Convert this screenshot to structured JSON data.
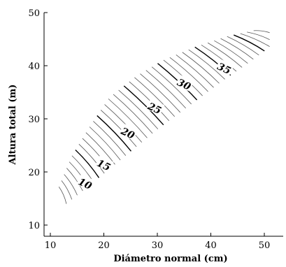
{
  "chart_data": {
    "type": "line",
    "title": "",
    "xlabel": "Diámetro normal (cm)",
    "ylabel": "Altura total (m)",
    "xlim": [
      10,
      53
    ],
    "ylim": [
      10,
      50
    ],
    "xticks": [
      "10",
      "20",
      "30",
      "40",
      "50"
    ],
    "yticks": [
      "10",
      "20",
      "30",
      "40",
      "50"
    ],
    "grid": false,
    "contour_lines_count": 40,
    "labeled_contours": [
      {
        "label": "10",
        "x": 16.5,
        "y": 17.8
      },
      {
        "label": "15",
        "x": 20.0,
        "y": 21.3
      },
      {
        "label": "20",
        "x": 24.5,
        "y": 27.3
      },
      {
        "label": "25",
        "x": 29.5,
        "y": 32.0
      },
      {
        "label": "30",
        "x": 35.0,
        "y": 36.5
      },
      {
        "label": "35",
        "x": 42.5,
        "y": 39.5
      }
    ],
    "region": {
      "left_boundary": [
        {
          "x": 11.6,
          "y": 17.2
        },
        {
          "x": 14.0,
          "y": 23.0
        },
        {
          "x": 17.0,
          "y": 28.0
        },
        {
          "x": 21.0,
          "y": 34.0
        },
        {
          "x": 26.0,
          "y": 38.0
        },
        {
          "x": 31.0,
          "y": 41.0
        },
        {
          "x": 37.0,
          "y": 43.5
        },
        {
          "x": 43.0,
          "y": 45.5
        },
        {
          "x": 48.0,
          "y": 46.6
        }
      ],
      "right_boundary": [
        {
          "x": 13.0,
          "y": 14.0
        },
        {
          "x": 18.0,
          "y": 18.0
        },
        {
          "x": 24.0,
          "y": 23.0
        },
        {
          "x": 30.0,
          "y": 28.0
        },
        {
          "x": 36.0,
          "y": 32.5
        },
        {
          "x": 42.0,
          "y": 37.0
        },
        {
          "x": 47.0,
          "y": 40.5
        },
        {
          "x": 51.0,
          "y": 43.5
        },
        {
          "x": 51.0,
          "y": 46.2
        }
      ]
    }
  }
}
